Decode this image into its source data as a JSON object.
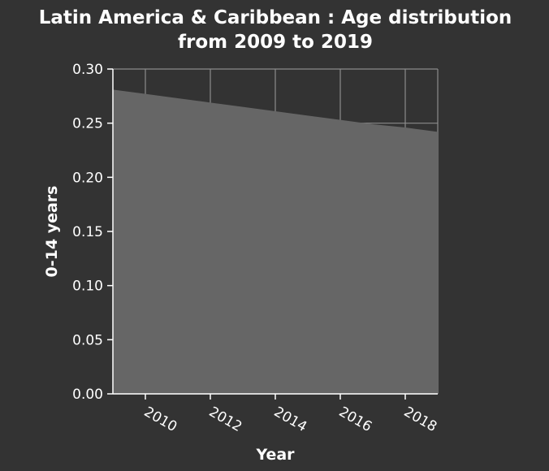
{
  "chart_data": {
    "type": "area",
    "title_lines": [
      "Latin America & Caribbean : Age distribution",
      "from 2009 to 2019"
    ],
    "xlabel": "Year",
    "ylabel": "0-14 years",
    "x": [
      2009,
      2010,
      2011,
      2012,
      2013,
      2014,
      2015,
      2016,
      2017,
      2018,
      2019
    ],
    "values": [
      0.281,
      0.277,
      0.273,
      0.269,
      0.265,
      0.261,
      0.257,
      0.253,
      0.249,
      0.246,
      0.242
    ],
    "xlim": [
      2009,
      2019
    ],
    "ylim": [
      0,
      0.3
    ],
    "x_ticks": [
      2010,
      2012,
      2014,
      2016,
      2018
    ],
    "x_tick_labels": [
      "2010",
      "2012",
      "2014",
      "2016",
      "2018"
    ],
    "y_ticks": [
      0,
      0.05,
      0.1,
      0.15,
      0.2,
      0.25,
      0.3
    ],
    "y_tick_labels": [
      "0.00",
      "0.05",
      "0.10",
      "0.15",
      "0.20",
      "0.25",
      "0.30"
    ],
    "grid": true,
    "colors": {
      "background": "#333333",
      "area_fill": "#666666",
      "grid": "#8c8c8c",
      "text": "#ffffff"
    }
  }
}
